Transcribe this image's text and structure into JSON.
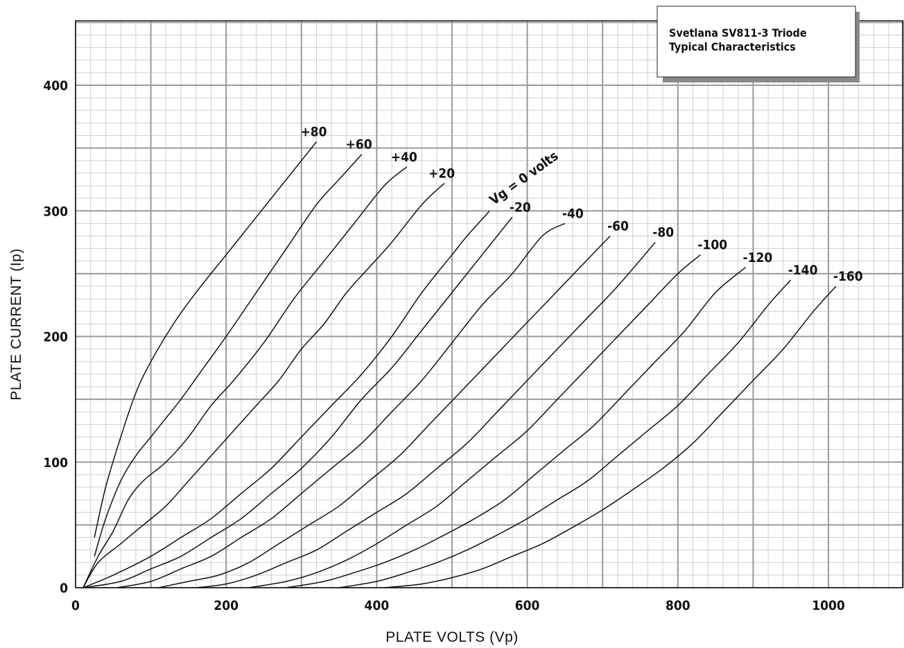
{
  "chart_data": {
    "type": "line",
    "title": "Svetlana SV811-3 Triode",
    "subtitle": "Typical Characteristics",
    "xlabel": "PLATE VOLTS (Vp)",
    "ylabel": "PLATE CURRENT (Ip)",
    "xlim": [
      0,
      1100
    ],
    "ylim": [
      0,
      450
    ],
    "xticks": [
      0,
      200,
      400,
      600,
      800,
      1000
    ],
    "yticks": [
      0,
      100,
      200,
      300,
      400
    ],
    "grid": true,
    "series": [
      {
        "name": "+80",
        "x": [
          25,
          40,
          60,
          80,
          100,
          130,
          160,
          200,
          240,
          280,
          320
        ],
        "y": [
          40,
          80,
          120,
          155,
          180,
          210,
          235,
          265,
          295,
          325,
          355
        ]
      },
      {
        "name": "+60",
        "x": [
          25,
          40,
          60,
          80,
          100,
          120,
          140,
          170,
          200,
          240,
          280,
          320,
          350,
          380
        ],
        "y": [
          25,
          55,
          85,
          105,
          120,
          135,
          150,
          175,
          200,
          235,
          270,
          305,
          325,
          345
        ]
      },
      {
        "name": "+40",
        "x": [
          10,
          30,
          50,
          70,
          90,
          120,
          150,
          180,
          210,
          250,
          290,
          330,
          370,
          410,
          440
        ],
        "y": [
          0,
          25,
          45,
          70,
          85,
          100,
          120,
          145,
          165,
          195,
          230,
          260,
          290,
          320,
          335
        ]
      },
      {
        "name": "+20",
        "x": [
          10,
          30,
          60,
          90,
          120,
          150,
          180,
          210,
          240,
          270,
          300,
          330,
          360,
          390,
          420,
          460,
          490
        ],
        "y": [
          0,
          20,
          35,
          50,
          65,
          85,
          105,
          125,
          145,
          165,
          190,
          210,
          235,
          255,
          275,
          305,
          322
        ]
      },
      {
        "name": "Vg = 0 volts",
        "x": [
          10,
          50,
          100,
          140,
          180,
          220,
          260,
          300,
          340,
          380,
          420,
          460,
          500,
          520,
          550
        ],
        "y": [
          0,
          10,
          25,
          40,
          55,
          75,
          95,
          120,
          145,
          170,
          200,
          235,
          265,
          280,
          300
        ]
      },
      {
        "name": "-20",
        "x": [
          10,
          60,
          100,
          140,
          180,
          220,
          260,
          300,
          340,
          380,
          420,
          460,
          500,
          540,
          580
        ],
        "y": [
          0,
          5,
          15,
          25,
          40,
          55,
          75,
          95,
          120,
          150,
          175,
          205,
          235,
          265,
          295
        ]
      },
      {
        "name": "-40",
        "x": [
          55,
          100,
          140,
          180,
          220,
          260,
          300,
          340,
          380,
          420,
          460,
          500,
          540,
          580,
          620,
          650
        ],
        "y": [
          0,
          5,
          15,
          25,
          40,
          55,
          75,
          95,
          115,
          140,
          165,
          195,
          225,
          250,
          280,
          290
        ]
      },
      {
        "name": "-60",
        "x": [
          110,
          150,
          190,
          230,
          270,
          310,
          350,
          390,
          430,
          470,
          510,
          550,
          590,
          630,
          670,
          710
        ],
        "y": [
          0,
          5,
          10,
          20,
          35,
          50,
          65,
          85,
          105,
          130,
          155,
          180,
          205,
          230,
          255,
          280
        ]
      },
      {
        "name": "-80",
        "x": [
          160,
          200,
          240,
          280,
          320,
          360,
          400,
          440,
          480,
          520,
          560,
          600,
          640,
          680,
          720,
          770
        ],
        "y": [
          0,
          3,
          10,
          20,
          30,
          45,
          60,
          75,
          95,
          115,
          140,
          165,
          190,
          215,
          240,
          275
        ]
      },
      {
        "name": "-100",
        "x": [
          230,
          280,
          320,
          360,
          400,
          440,
          480,
          520,
          560,
          600,
          640,
          680,
          720,
          760,
          800,
          830
        ],
        "y": [
          0,
          5,
          12,
          22,
          35,
          50,
          65,
          85,
          105,
          125,
          150,
          175,
          200,
          225,
          250,
          265
        ]
      },
      {
        "name": "-120",
        "x": [
          280,
          330,
          370,
          410,
          450,
          490,
          530,
          570,
          610,
          650,
          690,
          730,
          770,
          810,
          850,
          890
        ],
        "y": [
          0,
          5,
          12,
          20,
          30,
          42,
          55,
          70,
          90,
          110,
          130,
          155,
          180,
          205,
          235,
          255
        ]
      },
      {
        "name": "-140",
        "x": [
          350,
          400,
          440,
          480,
          520,
          560,
          600,
          640,
          680,
          720,
          760,
          800,
          840,
          880,
          920,
          950
        ],
        "y": [
          0,
          5,
          12,
          20,
          30,
          42,
          55,
          70,
          85,
          105,
          125,
          145,
          170,
          195,
          225,
          245
        ]
      },
      {
        "name": "-160",
        "x": [
          410,
          460,
          500,
          540,
          580,
          620,
          660,
          700,
          740,
          780,
          820,
          860,
          900,
          940,
          980,
          1010
        ],
        "y": [
          0,
          3,
          8,
          15,
          25,
          35,
          48,
          62,
          78,
          95,
          115,
          140,
          165,
          190,
          220,
          240
        ]
      }
    ]
  }
}
